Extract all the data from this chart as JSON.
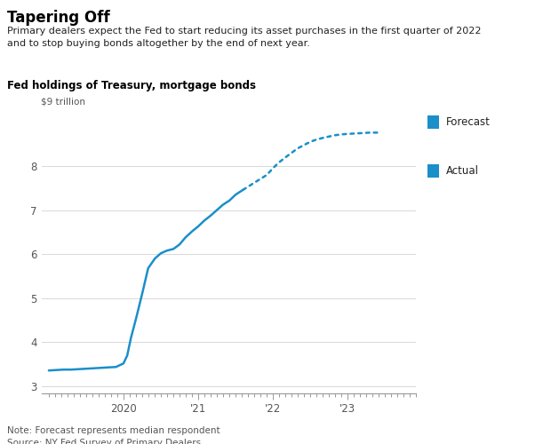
{
  "title": "Tapering Off",
  "subtitle": "Primary dealers expect the Fed to start reducing its asset purchases in the first quarter of 2022\nand to stop buying bonds altogether by the end of next year.",
  "chart_label": "Fed holdings of Treasury, mortgage bonds",
  "ylabel": "$9 trillion",
  "note": "Note: Forecast represents median respondent\nSource: NY Fed Survey of Primary Dealers",
  "line_color": "#1a8fca",
  "background_color": "#ffffff",
  "actual_x": [
    2019.0,
    2019.1,
    2019.2,
    2019.3,
    2019.4,
    2019.5,
    2019.6,
    2019.7,
    2019.8,
    2019.9,
    2020.0,
    2020.05,
    2020.1,
    2020.17,
    2020.25,
    2020.33,
    2020.42,
    2020.5,
    2020.58,
    2020.67,
    2020.75,
    2020.83,
    2020.92,
    2021.0,
    2021.08,
    2021.17,
    2021.25,
    2021.33,
    2021.42,
    2021.5,
    2021.6
  ],
  "actual_y": [
    3.36,
    3.37,
    3.38,
    3.38,
    3.39,
    3.4,
    3.41,
    3.42,
    3.43,
    3.44,
    3.52,
    3.7,
    4.1,
    4.55,
    5.1,
    5.68,
    5.9,
    6.02,
    6.08,
    6.12,
    6.22,
    6.38,
    6.52,
    6.63,
    6.76,
    6.88,
    7.0,
    7.12,
    7.22,
    7.35,
    7.46
  ],
  "forecast_x": [
    2021.6,
    2021.75,
    2021.92,
    2022.0,
    2022.08,
    2022.17,
    2022.25,
    2022.33,
    2022.42,
    2022.5,
    2022.58,
    2022.67,
    2022.75,
    2022.83,
    2022.92,
    2023.0,
    2023.1,
    2023.2,
    2023.3,
    2023.4
  ],
  "forecast_y": [
    7.46,
    7.62,
    7.8,
    7.95,
    8.08,
    8.2,
    8.3,
    8.4,
    8.48,
    8.55,
    8.6,
    8.64,
    8.67,
    8.7,
    8.72,
    8.73,
    8.74,
    8.75,
    8.76,
    8.76
  ],
  "yticks": [
    3,
    4,
    5,
    6,
    7,
    8
  ],
  "ylim": [
    2.85,
    9.2
  ],
  "xlim": [
    2018.9,
    2023.5
  ],
  "xtick_positions": [
    2020.0,
    2021.0,
    2022.0,
    2023.0
  ],
  "xtick_labels": [
    "2020",
    "'21",
    "'22",
    "'23"
  ],
  "legend_forecast_label": "Forecast",
  "legend_actual_label": "Actual"
}
